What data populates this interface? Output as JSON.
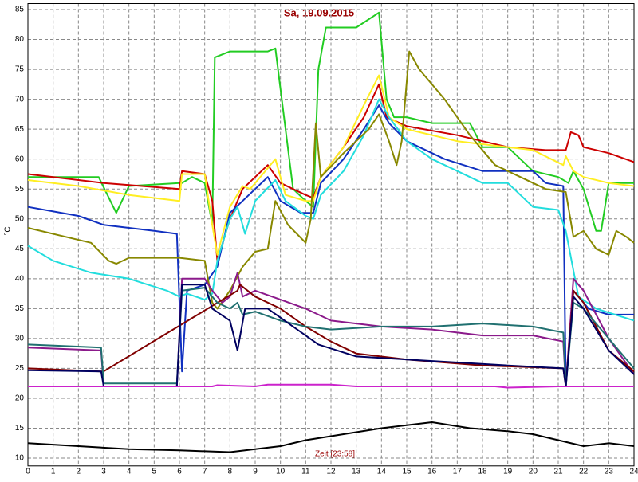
{
  "chart_data": {
    "type": "line",
    "title": "Sa, 19.09.2015",
    "y_label": "°C",
    "annotation": "Zeit [23:58]",
    "xlim": [
      0,
      24
    ],
    "xticks": [
      0,
      1,
      2,
      3,
      4,
      5,
      6,
      7,
      8,
      9,
      10,
      11,
      12,
      13,
      14,
      15,
      16,
      17,
      18,
      19,
      20,
      21,
      22,
      23,
      24
    ],
    "ylim": [
      8.7,
      86
    ],
    "yticks": [
      10,
      15,
      20,
      25,
      30,
      35,
      40,
      45,
      50,
      55,
      60,
      65,
      70,
      75,
      80,
      85
    ],
    "grid": true,
    "series": [
      {
        "color": "#22cc22",
        "x": [
          0,
          2.8,
          3.5,
          4,
          6,
          6.1,
          6.5,
          7,
          7.3,
          7.4,
          8,
          9.5,
          9.8,
          10.5,
          11,
          11.3,
          11.5,
          11.8,
          13,
          13.9,
          14.2,
          14.5,
          15,
          16,
          17.5,
          18,
          19,
          20,
          21,
          21.4,
          21.6,
          22,
          22.5,
          22.7,
          23,
          24
        ],
        "values": [
          57,
          57,
          51,
          55.5,
          56,
          56,
          57,
          56,
          49,
          77,
          78,
          78,
          78.5,
          55,
          53,
          52,
          75,
          82,
          82,
          84.5,
          70,
          67,
          67,
          66,
          66,
          62,
          62,
          58,
          57,
          56,
          58,
          55,
          48,
          48,
          56,
          56
        ]
      },
      {
        "color": "#cc0000",
        "x": [
          0,
          3,
          6,
          6.1,
          7,
          7.3,
          7.5,
          8,
          8.5,
          9,
          9.5,
          10,
          11,
          11.3,
          11.6,
          12.5,
          13.3,
          13.9,
          14.2,
          15,
          17,
          19,
          20.5,
          21.3,
          21.5,
          21.8,
          22,
          23,
          24
        ],
        "values": [
          57.5,
          56,
          55,
          58,
          57.5,
          53,
          43,
          50,
          55,
          57,
          59,
          56,
          54,
          53.5,
          57,
          62,
          67,
          72.5,
          67,
          65.5,
          64,
          62,
          61.5,
          61.5,
          64.5,
          64,
          62,
          61,
          59.5
        ]
      },
      {
        "color": "#ffee22",
        "x": [
          0,
          2,
          4,
          6,
          6.1,
          7,
          7.3,
          7.5,
          8,
          8.5,
          8.8,
          9.3,
          9.8,
          10.2,
          11,
          11.3,
          11.6,
          12.5,
          13.3,
          13.9,
          14.3,
          15,
          17,
          20,
          21.2,
          21.3,
          21.6,
          22,
          23,
          24
        ],
        "values": [
          56.5,
          55.5,
          54,
          53,
          57.5,
          57.5,
          49,
          44,
          52,
          55.5,
          55,
          57.5,
          60,
          54,
          53,
          53,
          57,
          62,
          69,
          74,
          67,
          65,
          63,
          61.5,
          59,
          60.5,
          58,
          57,
          56,
          55.5
        ]
      },
      {
        "color": "#1030c0",
        "x": [
          0,
          2,
          3,
          5,
          5.9,
          6.1,
          6.3,
          7,
          7.5,
          8,
          8.5,
          9,
          9.5,
          10,
          10.8,
          11.3,
          11.6,
          12.5,
          13.3,
          13.9,
          14.3,
          15,
          16.5,
          18,
          20,
          20.5,
          21.2,
          21.3,
          21.6,
          22.2,
          23,
          24
        ],
        "values": [
          52,
          50.5,
          49,
          48,
          47.5,
          24.5,
          38,
          39,
          42,
          51,
          53,
          55,
          57,
          53,
          51,
          51,
          56,
          60,
          65,
          69,
          66,
          63,
          60,
          58,
          58,
          56,
          55.5,
          22,
          38,
          35,
          34,
          34
        ]
      },
      {
        "color": "#22dddd",
        "x": [
          0,
          1,
          2.5,
          4,
          5.5,
          6,
          6.3,
          7,
          7.3,
          7.5,
          8,
          8.3,
          8.6,
          9,
          9.8,
          10.2,
          11,
          11.3,
          11.6,
          12.5,
          13.3,
          13.9,
          14.3,
          15,
          16,
          18,
          19,
          20,
          21,
          21.3,
          21.8,
          22.5,
          24
        ],
        "values": [
          45.5,
          43,
          41,
          40,
          38,
          37,
          37.5,
          36.5,
          37.5,
          43,
          50,
          52,
          47.5,
          53,
          56.5,
          53,
          50.5,
          50,
          54,
          58,
          64,
          70,
          67,
          63,
          60,
          56,
          56,
          52,
          51.5,
          48,
          37,
          35,
          33
        ]
      },
      {
        "color": "#888800",
        "x": [
          0,
          1.5,
          2.5,
          3.2,
          3.5,
          4,
          6,
          7,
          7.3,
          7.5,
          8,
          8.5,
          9,
          9.5,
          9.8,
          10.3,
          11,
          11.2,
          11.4,
          11.6,
          12.5,
          13.5,
          13.9,
          14.3,
          14.6,
          14.8,
          15.1,
          15.5,
          16.5,
          17.5,
          18.5,
          19.5,
          20.5,
          21.3,
          21.6,
          22,
          22.5,
          23,
          23.3,
          23.7,
          24
        ],
        "values": [
          48.5,
          47,
          46,
          43,
          42.5,
          43.5,
          43.5,
          43,
          36,
          35,
          38,
          42,
          44.5,
          45,
          53,
          49,
          46,
          50,
          66,
          57,
          61,
          65,
          67.5,
          63,
          59,
          63,
          78,
          75,
          70,
          64,
          59,
          57,
          55,
          54.5,
          47,
          48,
          45,
          44,
          48,
          47,
          46
        ]
      },
      {
        "color": "#8b1a8b",
        "x": [
          0,
          2.9,
          3,
          5.9,
          6.1,
          7,
          7.3,
          7.7,
          8,
          8.3,
          8.5,
          9,
          10,
          11,
          12,
          14,
          16,
          18,
          20,
          21.2,
          21.3,
          21.6,
          22,
          23,
          24
        ],
        "values": [
          28.5,
          28,
          22,
          22,
          40,
          40,
          38,
          36,
          37,
          41,
          37,
          38,
          36.5,
          35,
          33,
          32,
          31.5,
          30.5,
          30.5,
          29.5,
          22,
          40,
          38,
          30,
          24
        ]
      },
      {
        "color": "#800000",
        "x": [
          0,
          2.9,
          3,
          8.3,
          8.4,
          9,
          10,
          11,
          12,
          13,
          15,
          18,
          21.2,
          21.3,
          21.6,
          22,
          23,
          24
        ],
        "values": [
          25,
          24.5,
          24.5,
          38,
          39,
          37,
          35,
          32,
          29.5,
          27.5,
          26.5,
          25.5,
          25,
          22,
          38,
          36,
          28,
          24.5
        ]
      },
      {
        "color": "#207070",
        "x": [
          0,
          2.9,
          3,
          5.9,
          6.1,
          7,
          7.5,
          8,
          8.3,
          8.5,
          9,
          10,
          11,
          12,
          14,
          16,
          18,
          20,
          21.2,
          21.3,
          21.6,
          22,
          23,
          24
        ],
        "values": [
          29,
          28.5,
          22.5,
          22.5,
          38,
          38.5,
          36,
          35,
          36,
          34,
          34.5,
          33,
          32,
          31.5,
          32,
          32,
          32.5,
          32,
          31,
          22,
          36,
          35,
          30,
          25
        ]
      },
      {
        "color": "#000060",
        "x": [
          0,
          2.9,
          3,
          5.9,
          6.1,
          7,
          7.3,
          8,
          8.3,
          8.6,
          9.5,
          10.5,
          11.5,
          13,
          15,
          19,
          21.2,
          21.3,
          21.6,
          22,
          23,
          24
        ],
        "values": [
          24.7,
          24.5,
          22,
          22,
          39,
          39,
          35,
          33,
          28,
          35,
          35,
          32,
          29,
          27,
          26.5,
          25.5,
          25,
          22,
          37,
          35,
          28,
          24
        ]
      },
      {
        "color": "#cc22cc",
        "x": [
          0,
          7.3,
          7.5,
          9,
          9.5,
          12,
          13,
          18.5,
          19,
          21,
          24
        ],
        "values": [
          22,
          22,
          22.2,
          22,
          22.3,
          22.3,
          22,
          22,
          21.8,
          22,
          22
        ]
      },
      {
        "color": "#000000",
        "x": [
          0,
          2,
          4,
          6,
          8,
          9,
          10,
          11,
          12.5,
          14,
          15,
          16,
          17.5,
          19,
          20,
          21,
          22,
          23,
          24
        ],
        "values": [
          12.5,
          12,
          11.5,
          11.3,
          11,
          11.5,
          12,
          13,
          14,
          15,
          15.5,
          16,
          15,
          14.5,
          14,
          13,
          12,
          12.5,
          12
        ]
      }
    ]
  }
}
